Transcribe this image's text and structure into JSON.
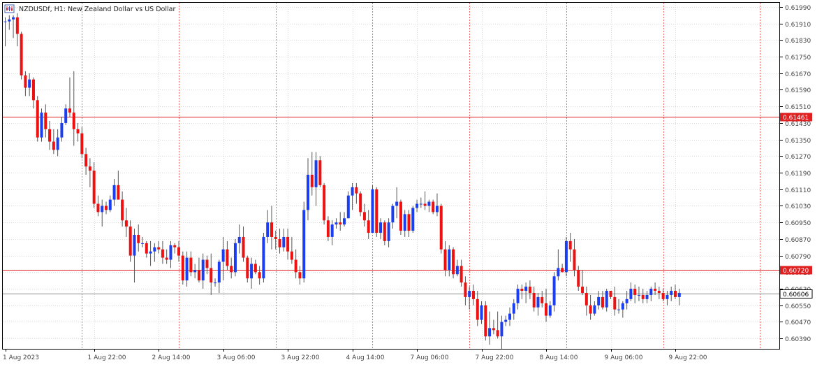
{
  "header": {
    "icon": "candlestick-chart-icon",
    "text": "NZDUSDf, H1:  New Zealand Dollar vs US Dollar"
  },
  "colors": {
    "bull": "#1b3ff0",
    "bear": "#ee1111",
    "wick": "#555555",
    "grid": "#d9d9d9",
    "vline": "#f06b6b",
    "hline": "#e02020",
    "current": "#8a8a8a",
    "text": "#444444"
  },
  "chart_data": {
    "type": "candlestick",
    "title": "NZDUSDf, H1:  New Zealand Dollar vs US Dollar",
    "symbol": "NZDUSDf",
    "timeframe": "H1",
    "ylim": [
      0.6034,
      0.6201
    ],
    "y_ticks": [
      "0.61990",
      "0.61910",
      "0.61830",
      "0.61750",
      "0.61670",
      "0.61590",
      "0.61510",
      "0.61430",
      "0.61350",
      "0.61270",
      "0.61190",
      "0.61110",
      "0.61030",
      "0.60950",
      "0.60870",
      "0.60790",
      "0.60710",
      "0.60630",
      "0.60550",
      "0.60470",
      "0.60390"
    ],
    "x_labels": [
      {
        "text": "1 Aug 2023",
        "bar": 0
      },
      {
        "text": "1 Aug 22:00",
        "bar": 22
      },
      {
        "text": "2 Aug 14:00",
        "bar": 38
      },
      {
        "text": "3 Aug 06:00",
        "bar": 54
      },
      {
        "text": "3 Aug 22:00",
        "bar": 70
      },
      {
        "text": "4 Aug 14:00",
        "bar": 86
      },
      {
        "text": "7 Aug 06:00",
        "bar": 102
      },
      {
        "text": "7 Aug 22:00",
        "bar": 118
      },
      {
        "text": "8 Aug 14:00",
        "bar": 134
      },
      {
        "text": "9 Aug 06:00",
        "bar": 150
      },
      {
        "text": "9 Aug 22:00",
        "bar": 166
      }
    ],
    "period_separators": [
      19,
      43,
      67,
      91,
      115,
      139,
      163,
      187
    ],
    "horizontal_lines": [
      {
        "price": 0.61461,
        "label": "0.61461"
      },
      {
        "price": 0.6072,
        "label": "0.60720"
      }
    ],
    "current_price": {
      "price": 0.60606,
      "label": "0.60606"
    },
    "candles": [
      [
        0.6192,
        0.6194,
        0.618,
        0.6192
      ],
      [
        0.6192,
        0.6195,
        0.6188,
        0.6193
      ],
      [
        0.6193,
        0.6195,
        0.6184,
        0.6194
      ],
      [
        0.6194,
        0.6196,
        0.618,
        0.6186
      ],
      [
        0.6186,
        0.6187,
        0.6164,
        0.6166
      ],
      [
        0.6166,
        0.6168,
        0.6156,
        0.616
      ],
      [
        0.616,
        0.6167,
        0.6156,
        0.6164
      ],
      [
        0.6164,
        0.6165,
        0.615,
        0.6154
      ],
      [
        0.6154,
        0.6156,
        0.6134,
        0.6136
      ],
      [
        0.6136,
        0.615,
        0.6134,
        0.6148
      ],
      [
        0.6148,
        0.6152,
        0.6136,
        0.614
      ],
      [
        0.614,
        0.6144,
        0.613,
        0.6134
      ],
      [
        0.6134,
        0.614,
        0.6128,
        0.613
      ],
      [
        0.613,
        0.614,
        0.6127,
        0.6136
      ],
      [
        0.6136,
        0.6146,
        0.6134,
        0.6143
      ],
      [
        0.6143,
        0.6152,
        0.6142,
        0.615
      ],
      [
        0.615,
        0.6165,
        0.6146,
        0.6148
      ],
      [
        0.6148,
        0.6168,
        0.6132,
        0.614
      ],
      [
        0.614,
        0.6143,
        0.6134,
        0.6138
      ],
      [
        0.6138,
        0.6141,
        0.6126,
        0.6128
      ],
      [
        0.6128,
        0.6131,
        0.6118,
        0.6122
      ],
      [
        0.6122,
        0.6126,
        0.6112,
        0.612
      ],
      [
        0.612,
        0.6124,
        0.6102,
        0.6104
      ],
      [
        0.6104,
        0.6108,
        0.6098,
        0.61
      ],
      [
        0.61,
        0.6106,
        0.6093,
        0.6103
      ],
      [
        0.6103,
        0.6105,
        0.6099,
        0.6101
      ],
      [
        0.6101,
        0.6108,
        0.61,
        0.6106
      ],
      [
        0.6106,
        0.6116,
        0.6103,
        0.6113
      ],
      [
        0.6113,
        0.612,
        0.6106,
        0.6106
      ],
      [
        0.6106,
        0.611,
        0.6093,
        0.6096
      ],
      [
        0.6096,
        0.6102,
        0.6088,
        0.6093
      ],
      [
        0.6093,
        0.6096,
        0.6076,
        0.6079
      ],
      [
        0.6079,
        0.6092,
        0.6066,
        0.6089
      ],
      [
        0.6089,
        0.6094,
        0.6081,
        0.6085
      ],
      [
        0.6085,
        0.6088,
        0.6083,
        0.6085
      ],
      [
        0.6085,
        0.6086,
        0.6078,
        0.608
      ],
      [
        0.608,
        0.6086,
        0.6074,
        0.6081
      ],
      [
        0.6081,
        0.6085,
        0.6076,
        0.6083
      ],
      [
        0.6083,
        0.6086,
        0.608,
        0.6082
      ],
      [
        0.6082,
        0.6086,
        0.6075,
        0.6078
      ],
      [
        0.6078,
        0.6082,
        0.6075,
        0.6077
      ],
      [
        0.6077,
        0.6086,
        0.6073,
        0.6084
      ],
      [
        0.6084,
        0.6085,
        0.608,
        0.6083
      ],
      [
        0.6083,
        0.6086,
        0.6076,
        0.6079
      ],
      [
        0.6079,
        0.6081,
        0.6065,
        0.6067
      ],
      [
        0.6067,
        0.6081,
        0.6064,
        0.6078
      ],
      [
        0.6078,
        0.6081,
        0.6069,
        0.6071
      ],
      [
        0.6071,
        0.6075,
        0.6068,
        0.6072
      ],
      [
        0.6072,
        0.6078,
        0.6066,
        0.6067
      ],
      [
        0.6067,
        0.608,
        0.6063,
        0.6077
      ],
      [
        0.6077,
        0.6079,
        0.607,
        0.6073
      ],
      [
        0.6073,
        0.608,
        0.606,
        0.6066
      ],
      [
        0.6066,
        0.6068,
        0.6064,
        0.6066
      ],
      [
        0.6066,
        0.6077,
        0.6061,
        0.6076
      ],
      [
        0.6076,
        0.6088,
        0.6067,
        0.6082
      ],
      [
        0.6082,
        0.6086,
        0.6072,
        0.6074
      ],
      [
        0.6074,
        0.6078,
        0.6068,
        0.6071
      ],
      [
        0.6071,
        0.6087,
        0.6069,
        0.6085
      ],
      [
        0.6085,
        0.6094,
        0.608,
        0.6088
      ],
      [
        0.6088,
        0.6093,
        0.6076,
        0.6078
      ],
      [
        0.6078,
        0.6079,
        0.6066,
        0.6068
      ],
      [
        0.6068,
        0.6078,
        0.6063,
        0.6075
      ],
      [
        0.6075,
        0.6077,
        0.607,
        0.6071
      ],
      [
        0.6071,
        0.6074,
        0.6065,
        0.6068
      ],
      [
        0.6068,
        0.609,
        0.6066,
        0.6088
      ],
      [
        0.6088,
        0.6101,
        0.6085,
        0.6095
      ],
      [
        0.6095,
        0.6103,
        0.6082,
        0.6088
      ],
      [
        0.6088,
        0.6091,
        0.6082,
        0.6087
      ],
      [
        0.6087,
        0.6092,
        0.608,
        0.6083
      ],
      [
        0.6083,
        0.6092,
        0.6081,
        0.6088
      ],
      [
        0.6088,
        0.6092,
        0.6077,
        0.6081
      ],
      [
        0.6081,
        0.6088,
        0.6075,
        0.6077
      ],
      [
        0.6077,
        0.6082,
        0.6068,
        0.6071
      ],
      [
        0.6071,
        0.6074,
        0.6065,
        0.6068
      ],
      [
        0.6068,
        0.6105,
        0.6066,
        0.6101
      ],
      [
        0.6101,
        0.6126,
        0.6096,
        0.6118
      ],
      [
        0.6118,
        0.6129,
        0.6108,
        0.6112
      ],
      [
        0.6112,
        0.6129,
        0.6103,
        0.6125
      ],
      [
        0.6125,
        0.6127,
        0.6112,
        0.6113
      ],
      [
        0.6113,
        0.6114,
        0.6094,
        0.6096
      ],
      [
        0.6096,
        0.6098,
        0.6086,
        0.6088
      ],
      [
        0.6088,
        0.6096,
        0.6084,
        0.6094
      ],
      [
        0.6094,
        0.6097,
        0.6092,
        0.6095
      ],
      [
        0.6095,
        0.61,
        0.6091,
        0.6094
      ],
      [
        0.6094,
        0.61,
        0.6093,
        0.6097
      ],
      [
        0.6097,
        0.611,
        0.6097,
        0.6108
      ],
      [
        0.6108,
        0.6114,
        0.6101,
        0.6112
      ],
      [
        0.6112,
        0.6114,
        0.6104,
        0.6109
      ],
      [
        0.6109,
        0.611,
        0.6098,
        0.61
      ],
      [
        0.61,
        0.6104,
        0.6093,
        0.6096
      ],
      [
        0.6096,
        0.6101,
        0.6087,
        0.609
      ],
      [
        0.609,
        0.6113,
        0.609,
        0.6111
      ],
      [
        0.6111,
        0.6112,
        0.6088,
        0.609
      ],
      [
        0.609,
        0.6097,
        0.6087,
        0.6095
      ],
      [
        0.6095,
        0.6096,
        0.6084,
        0.6086
      ],
      [
        0.6086,
        0.6097,
        0.6083,
        0.6095
      ],
      [
        0.6095,
        0.6104,
        0.6092,
        0.6103
      ],
      [
        0.6103,
        0.6112,
        0.6097,
        0.6105
      ],
      [
        0.6105,
        0.6106,
        0.6089,
        0.6091
      ],
      [
        0.6091,
        0.6101,
        0.6088,
        0.6099
      ],
      [
        0.6099,
        0.6101,
        0.6088,
        0.6091
      ],
      [
        0.6091,
        0.6103,
        0.609,
        0.6102
      ],
      [
        0.6102,
        0.6106,
        0.61,
        0.6104
      ],
      [
        0.6104,
        0.6107,
        0.6102,
        0.6104
      ],
      [
        0.6104,
        0.611,
        0.6101,
        0.6103
      ],
      [
        0.6103,
        0.6106,
        0.61,
        0.6105
      ],
      [
        0.6105,
        0.6106,
        0.6099,
        0.61
      ],
      [
        0.61,
        0.6109,
        0.6098,
        0.6103
      ],
      [
        0.6103,
        0.6104,
        0.608,
        0.6082
      ],
      [
        0.6082,
        0.6086,
        0.6069,
        0.6072
      ],
      [
        0.6072,
        0.6084,
        0.6069,
        0.6082
      ],
      [
        0.6082,
        0.6083,
        0.6068,
        0.607
      ],
      [
        0.607,
        0.6077,
        0.6069,
        0.6074
      ],
      [
        0.6074,
        0.6077,
        0.6064,
        0.6066
      ],
      [
        0.6066,
        0.6069,
        0.6055,
        0.6059
      ],
      [
        0.6059,
        0.6064,
        0.6053,
        0.6062
      ],
      [
        0.6062,
        0.6065,
        0.6055,
        0.6058
      ],
      [
        0.6058,
        0.6062,
        0.6045,
        0.6048
      ],
      [
        0.6048,
        0.6057,
        0.6046,
        0.6055
      ],
      [
        0.6055,
        0.6057,
        0.6038,
        0.604
      ],
      [
        0.604,
        0.6052,
        0.6036,
        0.6044
      ],
      [
        0.6044,
        0.6048,
        0.6041,
        0.6043
      ],
      [
        0.6043,
        0.6052,
        0.6039,
        0.604
      ],
      [
        0.604,
        0.605,
        0.6034,
        0.6047
      ],
      [
        0.6047,
        0.605,
        0.6045,
        0.6048
      ],
      [
        0.6048,
        0.6054,
        0.6045,
        0.6051
      ],
      [
        0.6051,
        0.6058,
        0.6048,
        0.6056
      ],
      [
        0.6056,
        0.6065,
        0.6053,
        0.6063
      ],
      [
        0.6063,
        0.6065,
        0.6058,
        0.6062
      ],
      [
        0.6062,
        0.6066,
        0.6056,
        0.6064
      ],
      [
        0.6064,
        0.6067,
        0.6058,
        0.6061
      ],
      [
        0.6061,
        0.6064,
        0.6052,
        0.6054
      ],
      [
        0.6054,
        0.6061,
        0.605,
        0.6059
      ],
      [
        0.6059,
        0.6062,
        0.6054,
        0.6056
      ],
      [
        0.6056,
        0.6063,
        0.6047,
        0.605
      ],
      [
        0.605,
        0.6057,
        0.6049,
        0.6055
      ],
      [
        0.6055,
        0.6071,
        0.6052,
        0.6069
      ],
      [
        0.6069,
        0.6082,
        0.6067,
        0.6073
      ],
      [
        0.6073,
        0.6075,
        0.6071,
        0.6071
      ],
      [
        0.6071,
        0.6088,
        0.6069,
        0.6086
      ],
      [
        0.6086,
        0.609,
        0.6076,
        0.6082
      ],
      [
        0.6082,
        0.6087,
        0.6069,
        0.6072
      ],
      [
        0.6072,
        0.6074,
        0.6062,
        0.6064
      ],
      [
        0.6064,
        0.6072,
        0.606,
        0.6061
      ],
      [
        0.6061,
        0.6064,
        0.605,
        0.6055
      ],
      [
        0.6055,
        0.606,
        0.6048,
        0.6051
      ],
      [
        0.6051,
        0.6057,
        0.605,
        0.6055
      ],
      [
        0.6055,
        0.6062,
        0.6053,
        0.6059
      ],
      [
        0.6059,
        0.6062,
        0.6053,
        0.6054
      ],
      [
        0.6054,
        0.6063,
        0.6052,
        0.6062
      ],
      [
        0.6062,
        0.6062,
        0.6058,
        0.6059
      ],
      [
        0.6059,
        0.6064,
        0.605,
        0.6053
      ],
      [
        0.6053,
        0.6058,
        0.6051,
        0.6053
      ],
      [
        0.6053,
        0.6057,
        0.6049,
        0.6056
      ],
      [
        0.6056,
        0.6062,
        0.6053,
        0.6058
      ],
      [
        0.6058,
        0.6066,
        0.6057,
        0.6063
      ],
      [
        0.6063,
        0.6065,
        0.6056,
        0.606
      ],
      [
        0.606,
        0.6064,
        0.6057,
        0.606
      ],
      [
        0.606,
        0.6063,
        0.6056,
        0.6058
      ],
      [
        0.6058,
        0.6062,
        0.6056,
        0.606
      ],
      [
        0.606,
        0.6064,
        0.6057,
        0.6063
      ],
      [
        0.6063,
        0.6066,
        0.606,
        0.6062
      ],
      [
        0.6062,
        0.6064,
        0.6058,
        0.6061
      ],
      [
        0.6061,
        0.6063,
        0.6057,
        0.6058
      ],
      [
        0.6058,
        0.6062,
        0.6055,
        0.606
      ],
      [
        0.606,
        0.6064,
        0.6057,
        0.6062
      ],
      [
        0.6062,
        0.6065,
        0.6058,
        0.6059
      ],
      [
        0.6059,
        0.6063,
        0.6055,
        0.6061
      ]
    ]
  }
}
